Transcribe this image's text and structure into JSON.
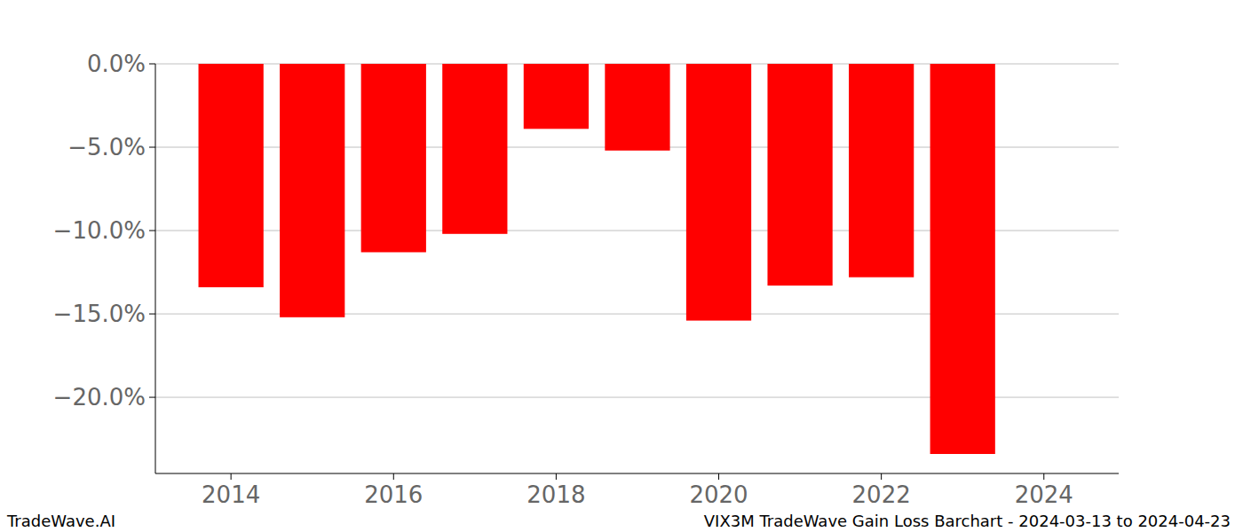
{
  "chart_data": {
    "type": "bar",
    "title": "VIX3M TradeWave Gain Loss Barchart - 2024-03-13 to 2024-04-23",
    "annotations": [
      "TradeWave.AI"
    ],
    "x": [
      2014,
      2015,
      2016,
      2017,
      2018,
      2019,
      2020,
      2021,
      2022,
      2023
    ],
    "values": [
      -13.4,
      -15.2,
      -11.3,
      -10.2,
      -3.9,
      -5.2,
      -15.4,
      -13.3,
      -12.8,
      -23.4
    ],
    "color": "#ff0000",
    "xlim": [
      2013.07,
      2024.92
    ],
    "xticks": [
      2014,
      2016,
      2018,
      2020,
      2022,
      2024
    ],
    "ylim": [
      -24.57,
      0
    ],
    "yticks": [
      {
        "value": 0,
        "label": "0.0%"
      },
      {
        "value": -5,
        "label": "−5.0%"
      },
      {
        "value": -10,
        "label": "−10.0%"
      },
      {
        "value": -15,
        "label": "−15.0%"
      },
      {
        "value": -20,
        "label": "−20.0%"
      }
    ],
    "grid": true
  }
}
